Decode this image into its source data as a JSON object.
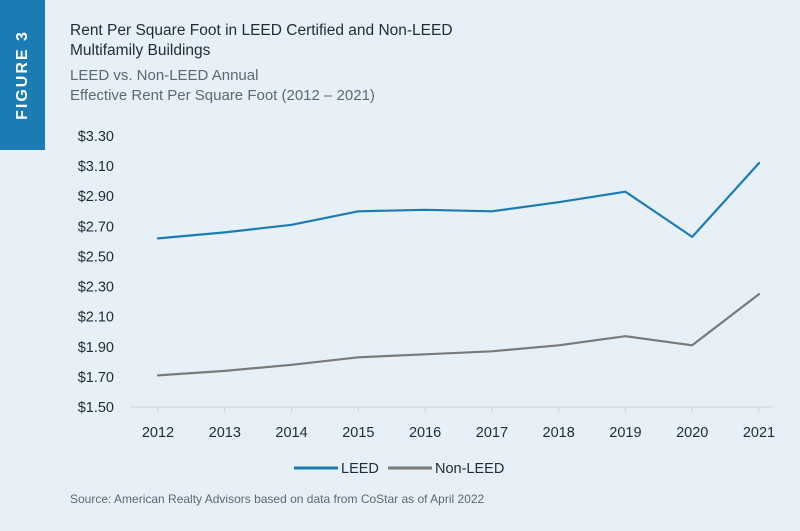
{
  "figure_label": "FIGURE 3",
  "title": "Rent Per Square Foot in LEED Certified and Non-LEED Multifamily Buildings",
  "subtitle_line1": "LEED vs. Non-LEED Annual",
  "subtitle_line2": "Effective Rent Per Square Foot (2012 – 2021)",
  "source": "Source: American Realty Advisors based on data from CoStar as of April 2022",
  "colors": {
    "background": "#e6f0f6",
    "tab": "#1b7bb3",
    "leed": "#1b7bb3",
    "non_leed": "#7a7a7a"
  },
  "chart_data": {
    "type": "line",
    "x": [
      "2012",
      "2013",
      "2014",
      "2015",
      "2016",
      "2017",
      "2018",
      "2019",
      "2020",
      "2021"
    ],
    "series": [
      {
        "name": "LEED",
        "color": "#1b7bb3",
        "values": [
          2.62,
          2.66,
          2.71,
          2.8,
          2.81,
          2.8,
          2.86,
          2.93,
          2.63,
          3.12
        ]
      },
      {
        "name": "Non-LEED",
        "color": "#7a7a7a",
        "values": [
          1.71,
          1.74,
          1.78,
          1.83,
          1.85,
          1.87,
          1.91,
          1.97,
          1.91,
          2.25
        ]
      }
    ],
    "ylim": [
      1.5,
      3.3
    ],
    "yticks": [
      "$1.50",
      "$1.70",
      "$1.90",
      "$2.10",
      "$2.30",
      "$2.50",
      "$2.70",
      "$2.90",
      "$3.10",
      "$3.30"
    ],
    "ytick_values": [
      1.5,
      1.7,
      1.9,
      2.1,
      2.3,
      2.5,
      2.7,
      2.9,
      3.1,
      3.3
    ],
    "grid": false,
    "legend": "bottom-center"
  }
}
